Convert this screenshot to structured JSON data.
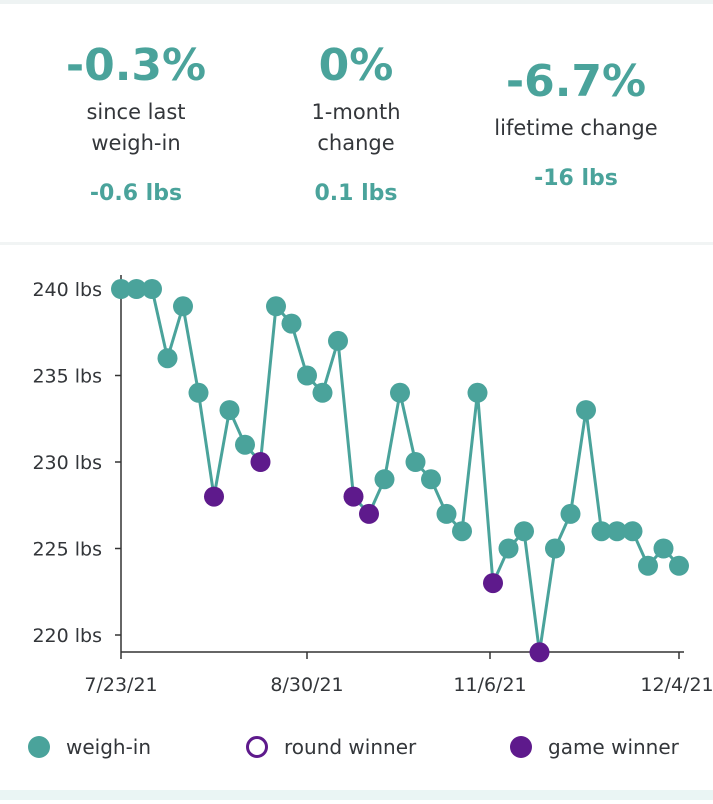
{
  "stats": [
    {
      "big": "-0.3%",
      "desc": [
        "since last",
        "weigh-in"
      ],
      "small": "-0.6 lbs"
    },
    {
      "big": "0%",
      "desc": [
        "1-month",
        "change"
      ],
      "small": "0.1 lbs"
    },
    {
      "big": "-6.7%",
      "desc": [
        "lifetime change"
      ],
      "small": "-16 lbs"
    }
  ],
  "colors": {
    "weighin": "#4aa39b",
    "winner": "#5e1a8c",
    "axis": "#333333",
    "text": "#33363a"
  },
  "legend": {
    "weighin": "weigh-in",
    "round": "round winner",
    "game": "game winner"
  },
  "chart_data": {
    "type": "line",
    "title": "",
    "xlabel": "",
    "ylabel": "",
    "ylim": [
      219,
      241
    ],
    "y_ticks": [
      220,
      225,
      230,
      235,
      240
    ],
    "y_tick_labels": [
      "220 lbs",
      "225 lbs",
      "230 lbs",
      "235 lbs",
      "240 lbs"
    ],
    "x_tick_labels": [
      "7/23/21",
      "8/30/21",
      "11/6/21",
      "12/4/21"
    ],
    "x_tick_index": [
      0,
      12,
      24,
      36
    ],
    "series": [
      {
        "name": "weigh-in",
        "values": [
          240,
          240,
          240,
          236,
          239,
          234,
          228,
          233,
          231,
          230,
          239,
          238,
          235,
          234,
          237,
          228,
          227,
          229,
          234,
          230,
          229,
          227,
          226,
          234,
          223,
          225,
          226,
          219,
          225,
          227,
          233,
          226,
          226,
          226,
          224,
          225,
          224
        ],
        "game_winner_indices": [
          6,
          9,
          15,
          16,
          24,
          27
        ],
        "round_winner_indices": []
      }
    ]
  }
}
